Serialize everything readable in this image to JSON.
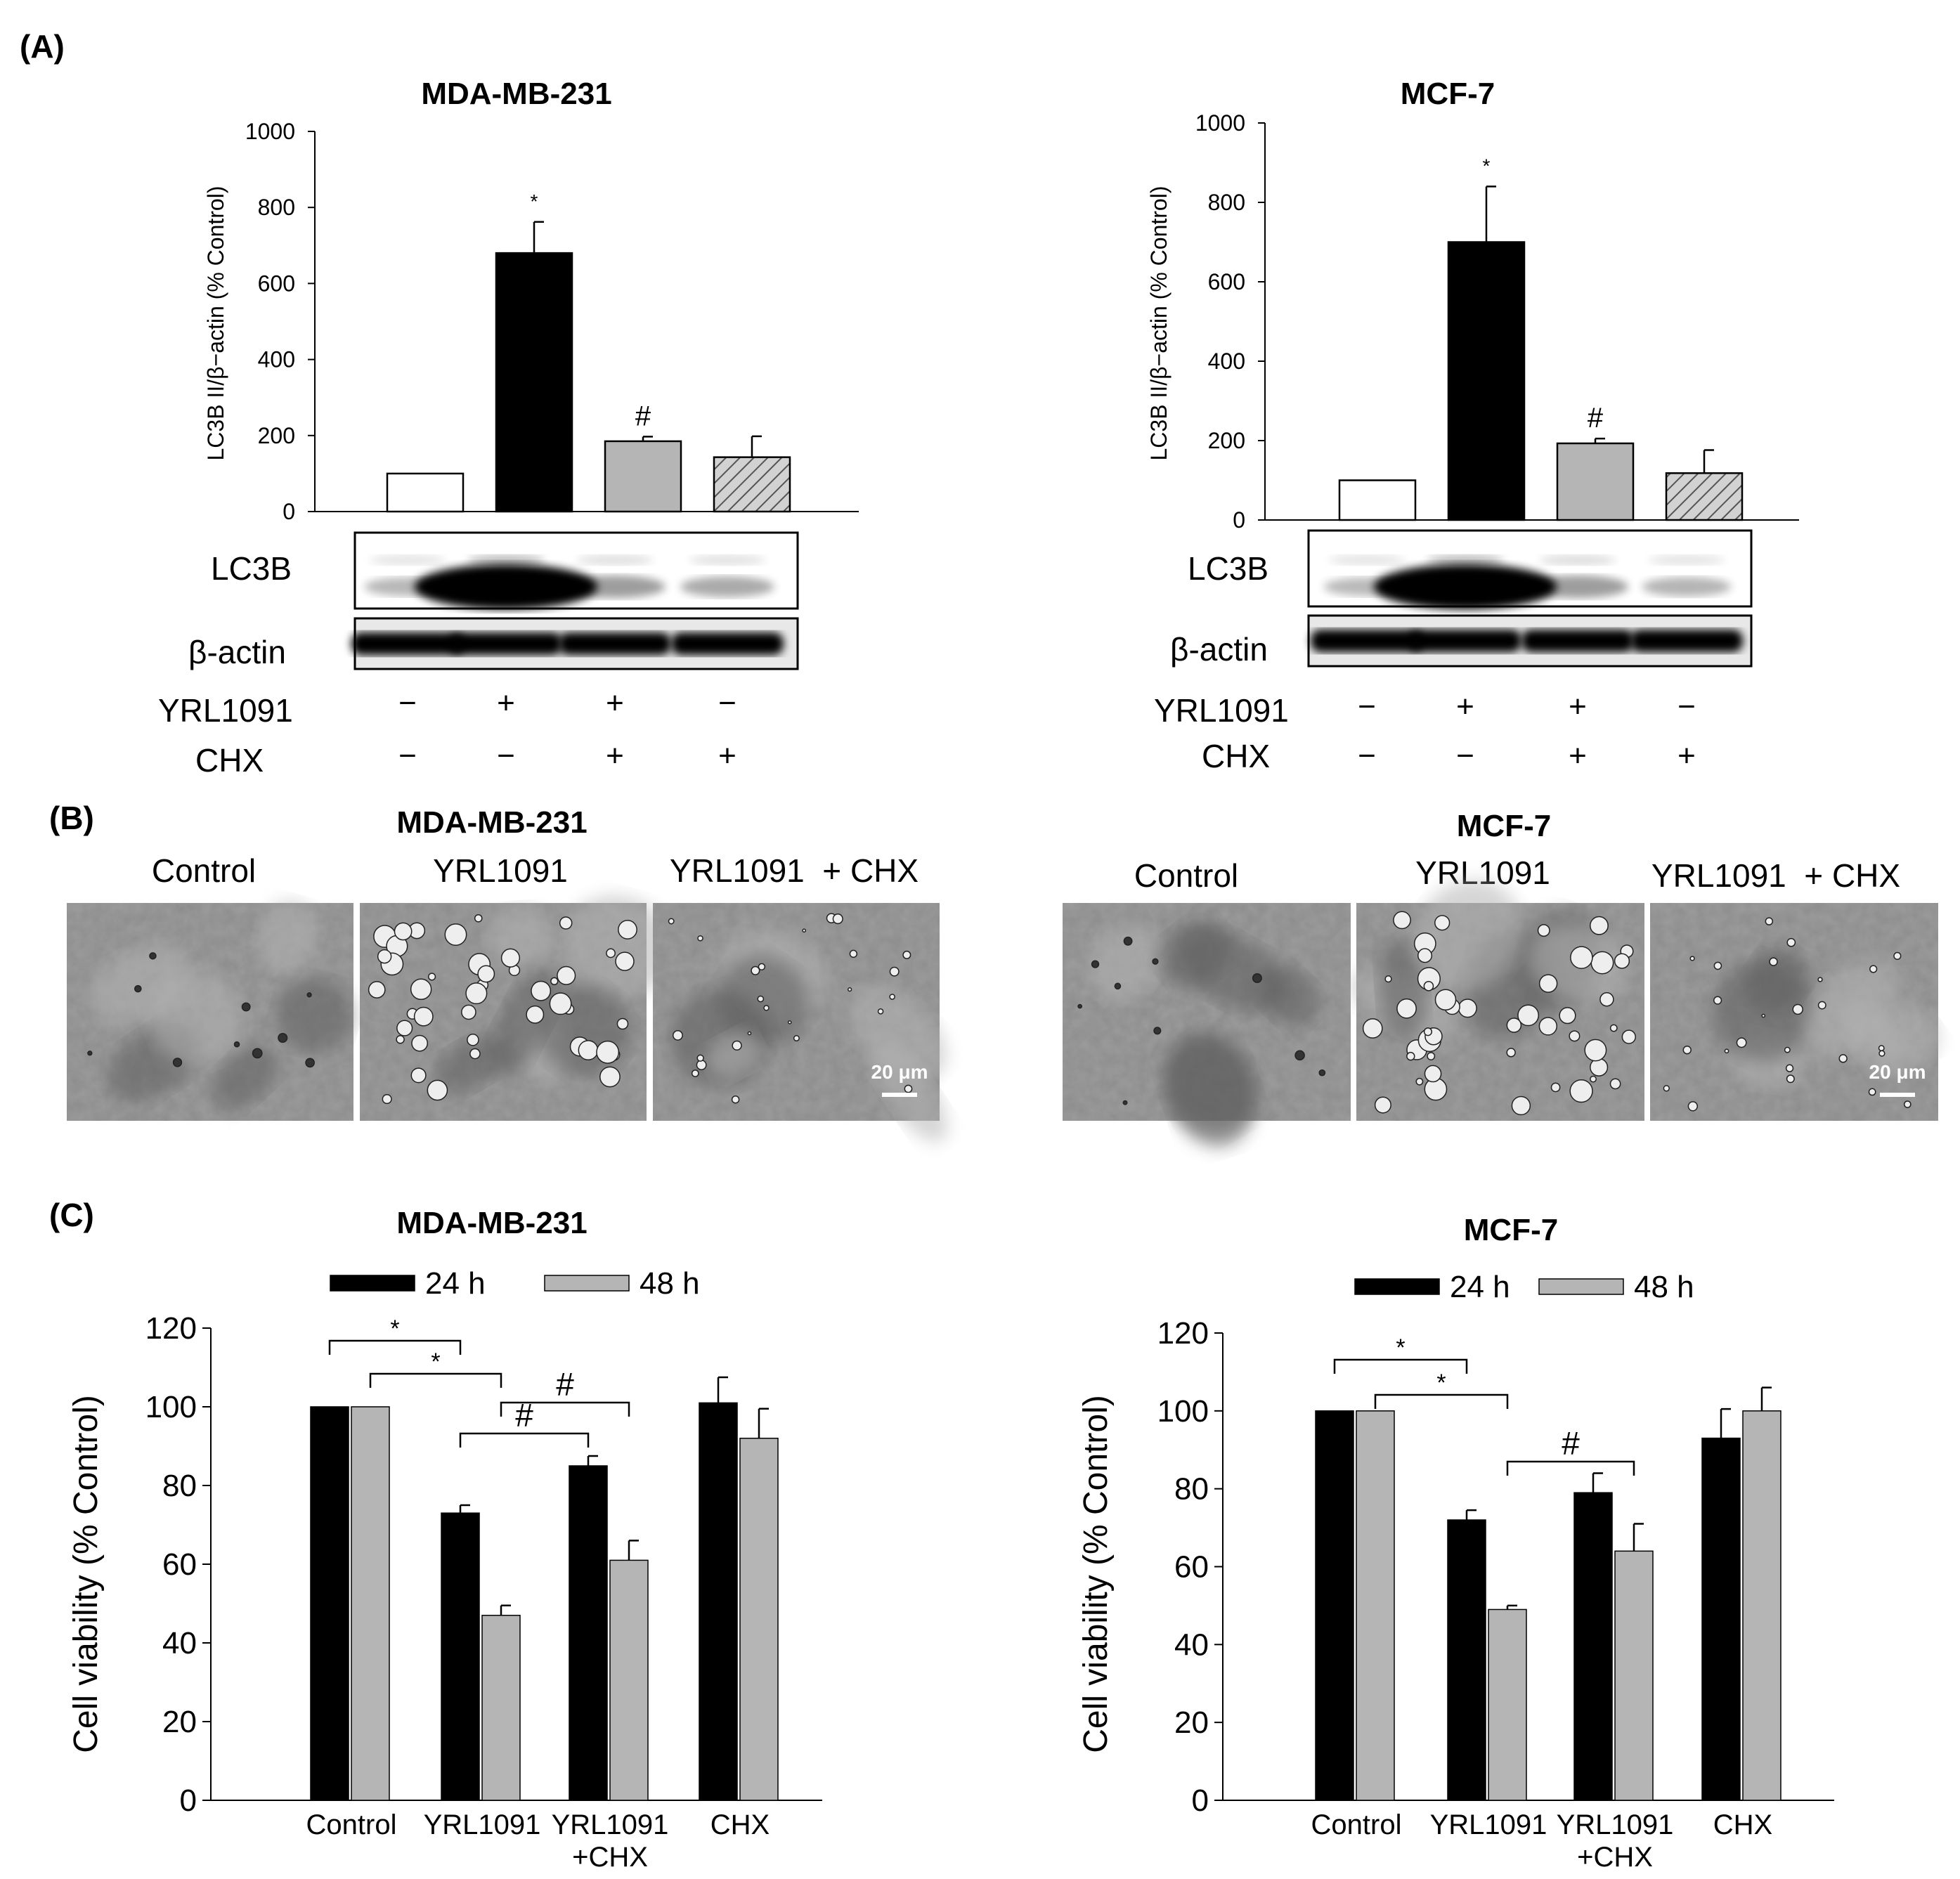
{
  "panels": {
    "a": "(A)",
    "b": "(B)",
    "c": "(C)"
  },
  "colors": {
    "black": "#000000",
    "white": "#ffffff",
    "gray": "#b5b5b5",
    "hatch": "#c8c8c8"
  },
  "chart_data": [
    {
      "id": "A-MDA",
      "type": "bar",
      "title": "MDA-MB-231",
      "ylabel": "LC3B II/β−actin (% Control)",
      "ylim": [
        0,
        1000
      ],
      "yticks": [
        "0",
        "200",
        "400",
        "600",
        "800",
        "1000"
      ],
      "categories": [
        "Control",
        "YRL1091",
        "YRL1091 + CHX",
        "CHX"
      ],
      "values": [
        100,
        680,
        185,
        143
      ],
      "errors": [
        0,
        82,
        12,
        55
      ],
      "fills": [
        "white",
        "black",
        "gray",
        "hatch"
      ],
      "annotations": [
        "",
        "*",
        "#",
        ""
      ],
      "blot": {
        "rows": [
          "LC3B",
          "β-actin"
        ],
        "treatments": [
          {
            "name": "YRL1091",
            "signs": [
              "−",
              "+",
              "+",
              "−"
            ]
          },
          {
            "name": "CHX",
            "signs": [
              "−",
              "−",
              "+",
              "+"
            ]
          }
        ]
      }
    },
    {
      "id": "A-MCF",
      "type": "bar",
      "title": "MCF-7",
      "ylabel": "LC3B II/β−actin (% Control)",
      "ylim": [
        0,
        1000
      ],
      "yticks": [
        "0",
        "200",
        "400",
        "600",
        "800",
        "1000"
      ],
      "categories": [
        "Control",
        "YRL1091",
        "YRL1091 + CHX",
        "CHX"
      ],
      "values": [
        100,
        700,
        193,
        118
      ],
      "errors": [
        0,
        140,
        12,
        58
      ],
      "fills": [
        "white",
        "black",
        "gray",
        "hatch"
      ],
      "annotations": [
        "",
        "*",
        "#",
        ""
      ],
      "blot": {
        "rows": [
          "LC3B",
          "β-actin"
        ],
        "treatments": [
          {
            "name": "YRL1091",
            "signs": [
              "−",
              "+",
              "+",
              "−"
            ]
          },
          {
            "name": "CHX",
            "signs": [
              "−",
              "−",
              "+",
              "+"
            ]
          }
        ]
      }
    },
    {
      "id": "C-MDA",
      "type": "bar",
      "title": "MDA-MB-231",
      "ylabel": "Cell viability (% Control)",
      "ylim": [
        0,
        120
      ],
      "yticks": [
        "0",
        "20",
        "40",
        "60",
        "80",
        "100",
        "120"
      ],
      "categories": [
        "Control",
        "YRL1091",
        "YRL1091\n+CHX",
        "CHX"
      ],
      "series": [
        {
          "name": "24 h",
          "color": "black",
          "values": [
            100,
            73,
            85,
            101
          ],
          "errors": [
            0,
            2,
            2.5,
            6.5
          ]
        },
        {
          "name": "48 h",
          "color": "gray",
          "values": [
            100,
            47,
            61,
            92
          ],
          "errors": [
            0,
            2.5,
            5,
            7.5
          ]
        }
      ],
      "significance": [
        {
          "label": "*",
          "from": "Control 24 h",
          "to": "YRL1091 24 h"
        },
        {
          "label": "*",
          "from": "Control 48 h",
          "to": "YRL1091 48 h"
        },
        {
          "label": "#",
          "from": "YRL1091 48 h",
          "to": "YRL1091+CHX 48 h"
        },
        {
          "label": "#",
          "from": "YRL1091 24 h",
          "to": "YRL1091+CHX 24 h"
        }
      ]
    },
    {
      "id": "C-MCF",
      "type": "bar",
      "title": "MCF-7",
      "ylabel": "Cell viability (% Control)",
      "ylim": [
        0,
        120
      ],
      "yticks": [
        "0",
        "20",
        "40",
        "60",
        "80",
        "100",
        "120"
      ],
      "categories": [
        "Control",
        "YRL1091",
        "YRL1091\n+CHX",
        "CHX"
      ],
      "series": [
        {
          "name": "24 h",
          "color": "black",
          "values": [
            100,
            72,
            79,
            93
          ],
          "errors": [
            0,
            2.5,
            5,
            7.5
          ]
        },
        {
          "name": "48 h",
          "color": "gray",
          "values": [
            100,
            49,
            64,
            100
          ],
          "errors": [
            0,
            1,
            7,
            6
          ]
        }
      ],
      "significance": [
        {
          "label": "*",
          "from": "Control 24 h",
          "to": "YRL1091 24 h"
        },
        {
          "label": "*",
          "from": "Control 48 h",
          "to": "YRL1091 48 h"
        },
        {
          "label": "#",
          "from": "YRL1091 48 h",
          "to": "YRL1091+CHX 48 h"
        }
      ]
    }
  ],
  "micrographs": [
    {
      "title": "MDA-MB-231",
      "labels": [
        "Control",
        "YRL1091",
        "YRL1091  + CHX"
      ],
      "scale": "20 μm"
    },
    {
      "title": "MCF-7",
      "labels": [
        "Control",
        "YRL1091",
        "YRL1091  + CHX"
      ],
      "scale": "20 μm"
    }
  ]
}
